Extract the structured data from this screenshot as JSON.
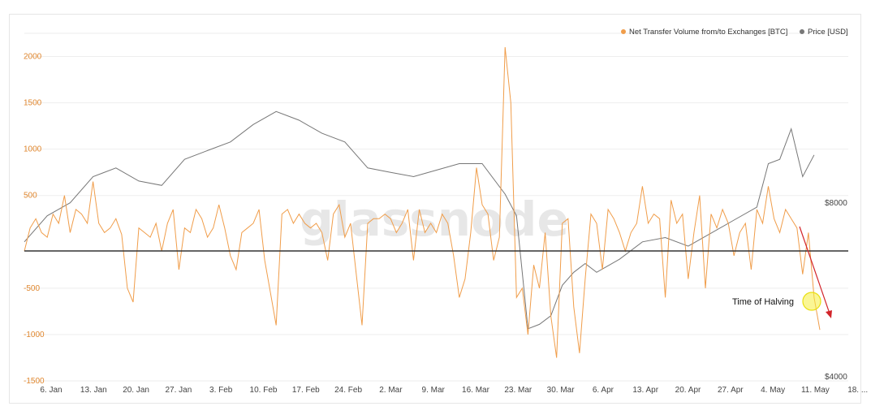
{
  "watermark": "glassnode",
  "chart_data": {
    "type": "line",
    "title": "",
    "xlabel": "",
    "ylabel": "",
    "ylim": [
      -1500,
      2250
    ],
    "y2lim": [
      4000,
      12000
    ],
    "grid": true,
    "legend_position": "top-right",
    "x_ticks": [
      "6. Jan",
      "13. Jan",
      "20. Jan",
      "27. Jan",
      "3. Feb",
      "10. Feb",
      "17. Feb",
      "24. Feb",
      "2. Mar",
      "9. Mar",
      "16. Mar",
      "23. Mar",
      "30. Mar",
      "6. Apr",
      "13. Apr",
      "20. Apr",
      "27. Apr",
      "4. May",
      "11. May",
      "18. ..."
    ],
    "y_ticks": [
      2000,
      1500,
      1000,
      500,
      0,
      -500,
      -1000,
      -1500
    ],
    "y_tick_labels": [
      "2000",
      "1500",
      "1000",
      "500",
      "0",
      "-500",
      "-1000",
      "-1500"
    ],
    "y2_ticks": [
      8000,
      4000
    ],
    "y2_tick_labels": [
      "$8000",
      "$4000"
    ],
    "series": [
      {
        "name": "Net Transfer Volume from/to Exchanges [BTC]",
        "color": "#f09d4a",
        "axis": "left",
        "x": [
          0,
          1,
          2,
          3,
          4,
          5,
          6,
          7,
          8,
          9,
          10,
          11,
          12,
          13,
          14,
          15,
          16,
          17,
          18,
          19,
          20,
          21,
          22,
          23,
          24,
          25,
          26,
          27,
          28,
          29,
          30,
          31,
          32,
          33,
          34,
          35,
          36,
          37,
          38,
          39,
          40,
          41,
          42,
          43,
          44,
          45,
          46,
          47,
          48,
          49,
          50,
          51,
          52,
          53,
          54,
          55,
          56,
          57,
          58,
          59,
          60,
          61,
          62,
          63,
          64,
          65,
          66,
          67,
          68,
          69,
          70,
          71,
          72,
          73,
          74,
          75,
          76,
          77,
          78,
          79,
          80,
          81,
          82,
          83,
          84,
          85,
          86,
          87,
          88,
          89,
          90,
          91,
          92,
          93,
          94,
          95,
          96,
          97,
          98,
          99,
          100,
          101,
          102,
          103,
          104,
          105,
          106,
          107,
          108,
          109,
          110,
          111,
          112,
          113,
          114,
          115,
          116,
          117,
          118,
          119,
          120,
          121,
          122,
          123,
          124,
          125,
          126,
          127,
          128,
          129,
          130,
          131,
          132,
          133,
          134,
          135,
          136,
          137,
          138,
          139
        ],
        "values": [
          -100,
          150,
          250,
          100,
          50,
          300,
          200,
          500,
          100,
          350,
          300,
          200,
          650,
          200,
          100,
          150,
          250,
          80,
          -500,
          -650,
          150,
          100,
          50,
          200,
          -100,
          200,
          350,
          -300,
          150,
          100,
          350,
          250,
          50,
          150,
          400,
          150,
          -150,
          -300,
          100,
          150,
          200,
          350,
          -200,
          -550,
          -900,
          300,
          350,
          200,
          300,
          200,
          150,
          200,
          100,
          -200,
          300,
          400,
          50,
          200,
          -350,
          -900,
          200,
          250,
          250,
          300,
          250,
          100,
          200,
          350,
          -200,
          350,
          100,
          200,
          100,
          300,
          200,
          -150,
          -600,
          -400,
          100,
          800,
          400,
          300,
          -200,
          50,
          2100,
          1500,
          -600,
          -500,
          -1000,
          -250,
          -500,
          100,
          -800,
          -1250,
          200,
          250,
          -700,
          -1200,
          -400,
          300,
          200,
          -300,
          350,
          250,
          100,
          -100,
          100,
          200,
          600,
          200,
          300,
          250,
          -600,
          450,
          200,
          300,
          -400,
          100,
          500,
          -500,
          300,
          150,
          350,
          200,
          -150,
          100,
          200,
          -300,
          350,
          200,
          600,
          250,
          100,
          350,
          250,
          150,
          -350,
          100,
          -600,
          -950
        ],
        "raw_values": [
          -100,
          150,
          250,
          100,
          50,
          300,
          200,
          500,
          100,
          350,
          300,
          200,
          650,
          200,
          100,
          150,
          250,
          80,
          -500,
          -650,
          150,
          100,
          50,
          200,
          -100,
          200,
          350,
          -300,
          150,
          100,
          350,
          250,
          50,
          150,
          400,
          150,
          -150,
          -300,
          100,
          150,
          200,
          350,
          -200,
          -550,
          -900,
          300,
          350,
          200,
          300,
          200,
          150,
          200,
          100,
          -200,
          300,
          400,
          50,
          200,
          -350,
          -900,
          200,
          250,
          250,
          300,
          250,
          100,
          200,
          350,
          -200,
          350,
          100,
          200,
          100,
          300,
          200,
          -150,
          -600,
          -400,
          100,
          800,
          400,
          300,
          -200,
          50,
          2100,
          1500,
          -600,
          -500,
          -1000,
          -250,
          -500,
          100,
          -800,
          -1250,
          200,
          250,
          -700,
          -1200,
          -400,
          300,
          200,
          -300,
          350,
          250,
          100,
          -100,
          100,
          200,
          600,
          200,
          300,
          250,
          -600,
          450,
          200,
          300,
          -400,
          100,
          500,
          -500,
          300,
          150,
          350,
          200,
          -150,
          100,
          200,
          -300,
          350,
          200,
          600,
          250,
          100,
          350,
          250,
          150,
          -350,
          100,
          -600,
          -950
        ]
      },
      {
        "name": "Price [USD]",
        "color": "#777777",
        "axis": "right",
        "x": [
          0,
          4,
          8,
          12,
          16,
          20,
          24,
          28,
          32,
          36,
          40,
          44,
          48,
          52,
          56,
          60,
          64,
          68,
          72,
          76,
          80,
          84,
          86,
          88,
          90,
          92,
          94,
          96,
          98,
          100,
          104,
          108,
          112,
          116,
          120,
          124,
          128,
          130,
          132,
          134,
          136,
          138
        ],
        "values": [
          7200,
          7800,
          8100,
          8700,
          8900,
          8600,
          8500,
          9100,
          9300,
          9500,
          9900,
          10200,
          10000,
          9700,
          9500,
          8900,
          8800,
          8700,
          8850,
          9000,
          9000,
          8300,
          7800,
          5200,
          5300,
          5500,
          6200,
          6500,
          6700,
          6500,
          6800,
          7200,
          7300,
          7100,
          7400,
          7700,
          8000,
          9000,
          9100,
          9800,
          8700,
          9200
        ]
      }
    ],
    "annotations": [
      {
        "text": "Time of Halving"
      }
    ]
  },
  "legend": [
    {
      "label": "Net Transfer Volume from/to Exchanges [BTC]",
      "color": "#f09d4a"
    },
    {
      "label": "Price [USD]",
      "color": "#777777"
    }
  ]
}
